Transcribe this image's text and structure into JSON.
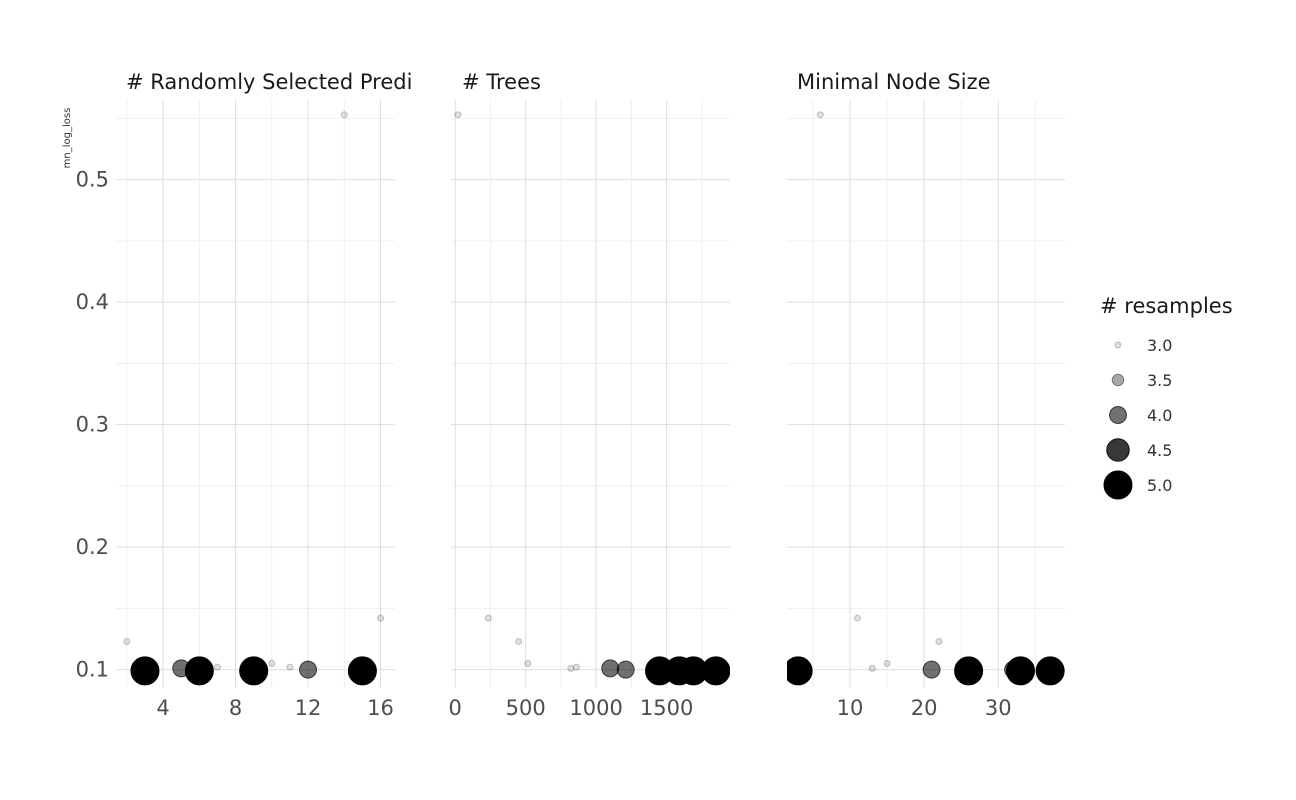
{
  "chart_data": {
    "type": "scatter",
    "ylabel": "mn_log_loss",
    "ylim": [
      0.085,
      0.565
    ],
    "yticks": [
      0.1,
      0.2,
      0.3,
      0.4,
      0.5
    ],
    "ytick_labels": [
      "0.1",
      "0.2",
      "0.3",
      "0.4",
      "0.5"
    ],
    "grid": true,
    "point_color": "#000000",
    "legend": {
      "title": "# resamples",
      "placement": "right",
      "entries": [
        {
          "label": "3.0",
          "value": 3.0
        },
        {
          "label": "3.5",
          "value": 3.5
        },
        {
          "label": "4.0",
          "value": 4.0
        },
        {
          "label": "4.5",
          "value": 4.5
        },
        {
          "label": "5.0",
          "value": 5.0
        }
      ]
    },
    "panels": [
      {
        "title": "# Randomly Selected Predi",
        "xlim": [
          1.4,
          16.8
        ],
        "xticks": [
          4,
          8,
          12,
          16
        ],
        "xtick_labels": [
          "4",
          "8",
          "12",
          "16"
        ],
        "points": [
          {
            "x": 2,
            "y": 0.123,
            "n": 3
          },
          {
            "x": 3,
            "y": 0.099,
            "n": 5
          },
          {
            "x": 5,
            "y": 0.101,
            "n": 4
          },
          {
            "x": 6,
            "y": 0.099,
            "n": 5
          },
          {
            "x": 7,
            "y": 0.102,
            "n": 3
          },
          {
            "x": 9,
            "y": 0.099,
            "n": 5
          },
          {
            "x": 10,
            "y": 0.105,
            "n": 3
          },
          {
            "x": 11,
            "y": 0.102,
            "n": 3
          },
          {
            "x": 12,
            "y": 0.1,
            "n": 4
          },
          {
            "x": 14,
            "y": 0.553,
            "n": 3
          },
          {
            "x": 15,
            "y": 0.099,
            "n": 5
          },
          {
            "x": 16,
            "y": 0.142,
            "n": 3
          }
        ]
      },
      {
        "title": "# Trees",
        "xlim": [
          -30,
          1950
        ],
        "xticks": [
          0,
          500,
          1000,
          1500
        ],
        "xtick_labels": [
          "0",
          "500",
          "1000",
          "1500"
        ],
        "points": [
          {
            "x": 20,
            "y": 0.553,
            "n": 3
          },
          {
            "x": 235,
            "y": 0.142,
            "n": 3
          },
          {
            "x": 450,
            "y": 0.123,
            "n": 3
          },
          {
            "x": 515,
            "y": 0.105,
            "n": 3
          },
          {
            "x": 820,
            "y": 0.101,
            "n": 3
          },
          {
            "x": 860,
            "y": 0.102,
            "n": 3
          },
          {
            "x": 1100,
            "y": 0.101,
            "n": 4
          },
          {
            "x": 1210,
            "y": 0.1,
            "n": 4
          },
          {
            "x": 1450,
            "y": 0.099,
            "n": 5
          },
          {
            "x": 1590,
            "y": 0.099,
            "n": 5
          },
          {
            "x": 1690,
            "y": 0.099,
            "n": 5
          },
          {
            "x": 1850,
            "y": 0.099,
            "n": 5
          }
        ]
      },
      {
        "title": "Minimal Node Size",
        "xlim": [
          1.5,
          39.0
        ],
        "xticks": [
          10,
          20,
          30
        ],
        "xtick_labels": [
          "10",
          "20",
          "30"
        ],
        "points": [
          {
            "x": 3,
            "y": 0.099,
            "n": 5
          },
          {
            "x": 6,
            "y": 0.553,
            "n": 3
          },
          {
            "x": 11,
            "y": 0.142,
            "n": 3
          },
          {
            "x": 13,
            "y": 0.101,
            "n": 3
          },
          {
            "x": 15,
            "y": 0.105,
            "n": 3
          },
          {
            "x": 21,
            "y": 0.1,
            "n": 4
          },
          {
            "x": 22,
            "y": 0.123,
            "n": 3
          },
          {
            "x": 26,
            "y": 0.099,
            "n": 5
          },
          {
            "x": 32,
            "y": 0.1,
            "n": 4
          },
          {
            "x": 33,
            "y": 0.099,
            "n": 5
          },
          {
            "x": 37,
            "y": 0.099,
            "n": 5
          }
        ]
      }
    ]
  }
}
